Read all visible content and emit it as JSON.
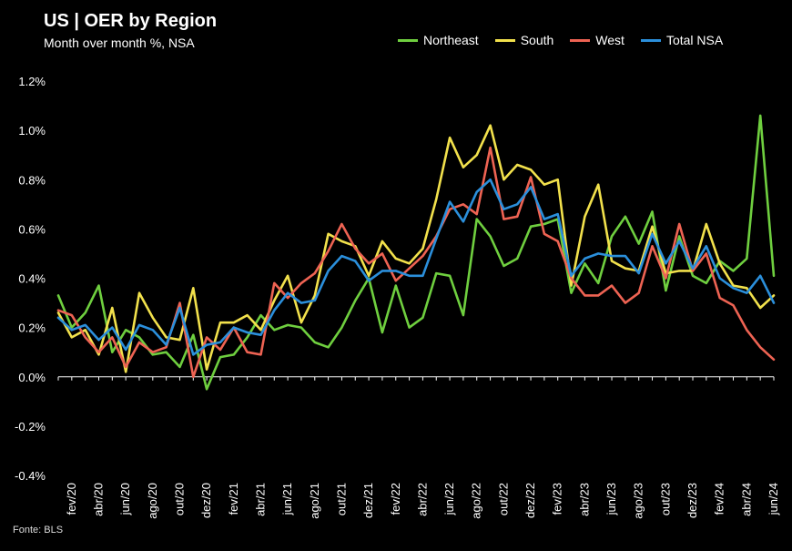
{
  "header": {
    "title": "US | OER by Region",
    "subtitle": "Month over month %, NSA"
  },
  "footer": {
    "source": "Fonte: BLS"
  },
  "chart_data": {
    "type": "line",
    "title": "US | OER by Region",
    "subtitle": "Month over month %, NSA",
    "xlabel": "",
    "ylabel": "",
    "ylim": [
      -0.4,
      1.2
    ],
    "yticks": [
      -0.4,
      -0.2,
      0.0,
      0.2,
      0.4,
      0.6,
      0.8,
      1.0,
      1.2
    ],
    "ytick_labels": [
      "-0.4%",
      "-0.2%",
      "0.0%",
      "0.2%",
      "0.4%",
      "0.6%",
      "0.8%",
      "1.0%",
      "1.2%"
    ],
    "xtick_labels": [
      "fev/20",
      "abr/20",
      "jun/20",
      "ago/20",
      "out/20",
      "dez/20",
      "fev/21",
      "abr/21",
      "jun/21",
      "ago/21",
      "out/21",
      "dez/21",
      "fev/22",
      "abr/22",
      "jun/22",
      "ago/22",
      "out/22",
      "dez/22",
      "fev/23",
      "abr/23",
      "jun/23",
      "ago/23",
      "out/23",
      "dez/23",
      "fev/24",
      "abr/24",
      "jun/24"
    ],
    "legend_position": "top-right",
    "x": [
      "jan/20",
      "fev/20",
      "mar/20",
      "abr/20",
      "mai/20",
      "jun/20",
      "jul/20",
      "ago/20",
      "set/20",
      "out/20",
      "nov/20",
      "dez/20",
      "jan/21",
      "fev/21",
      "mar/21",
      "abr/21",
      "mai/21",
      "jun/21",
      "jul/21",
      "ago/21",
      "set/21",
      "out/21",
      "nov/21",
      "dez/21",
      "jan/22",
      "fev/22",
      "mar/22",
      "abr/22",
      "mai/22",
      "jun/22",
      "jul/22",
      "ago/22",
      "set/22",
      "out/22",
      "nov/22",
      "dez/22",
      "jan/23",
      "fev/23",
      "mar/23",
      "abr/23",
      "mai/23",
      "jun/23",
      "jul/23",
      "ago/23",
      "set/23",
      "out/23",
      "nov/23",
      "dez/23",
      "jan/24",
      "fev/24",
      "mar/24",
      "abr/24",
      "mai/24",
      "jun/24"
    ],
    "series": [
      {
        "name": "Northeast",
        "color": "#6fcf3f",
        "values": [
          0.33,
          0.2,
          0.26,
          0.37,
          0.1,
          0.19,
          0.16,
          0.09,
          0.1,
          0.04,
          0.17,
          -0.05,
          0.08,
          0.09,
          0.16,
          0.25,
          0.19,
          0.21,
          0.2,
          0.14,
          0.12,
          0.2,
          0.31,
          0.4,
          0.18,
          0.37,
          0.2,
          0.24,
          0.42,
          0.41,
          0.25,
          0.64,
          0.57,
          0.45,
          0.48,
          0.61,
          0.62,
          0.64,
          0.34,
          0.46,
          0.38,
          0.57,
          0.65,
          0.54,
          0.67,
          0.35,
          0.57,
          0.41,
          0.38,
          0.47,
          0.43,
          0.48,
          1.06,
          0.41
        ]
      },
      {
        "name": "South",
        "color": "#f2e14c",
        "values": [
          0.26,
          0.16,
          0.19,
          0.09,
          0.28,
          0.02,
          0.34,
          0.24,
          0.16,
          0.15,
          0.36,
          0.03,
          0.22,
          0.22,
          0.25,
          0.19,
          0.31,
          0.41,
          0.22,
          0.33,
          0.58,
          0.55,
          0.53,
          0.41,
          0.55,
          0.48,
          0.46,
          0.52,
          0.72,
          0.97,
          0.85,
          0.9,
          1.02,
          0.8,
          0.86,
          0.84,
          0.78,
          0.8,
          0.37,
          0.65,
          0.78,
          0.47,
          0.44,
          0.43,
          0.61,
          0.42,
          0.43,
          0.43,
          0.62,
          0.46,
          0.37,
          0.36,
          0.28,
          0.33
        ]
      },
      {
        "name": "West",
        "color": "#ee6353",
        "values": [
          0.27,
          0.25,
          0.16,
          0.1,
          0.16,
          0.04,
          0.14,
          0.1,
          0.12,
          0.3,
          0.0,
          0.16,
          0.11,
          0.2,
          0.1,
          0.09,
          0.38,
          0.32,
          0.38,
          0.42,
          0.51,
          0.62,
          0.52,
          0.46,
          0.5,
          0.39,
          0.44,
          0.49,
          0.57,
          0.68,
          0.7,
          0.66,
          0.93,
          0.64,
          0.65,
          0.81,
          0.58,
          0.55,
          0.4,
          0.33,
          0.33,
          0.37,
          0.3,
          0.34,
          0.53,
          0.4,
          0.62,
          0.43,
          0.5,
          0.32,
          0.29,
          0.19,
          0.12,
          0.07
        ]
      },
      {
        "name": "Total NSA",
        "color": "#2b8fdb",
        "values": [
          0.24,
          0.19,
          0.21,
          0.15,
          0.2,
          0.11,
          0.21,
          0.19,
          0.13,
          0.28,
          0.09,
          0.13,
          0.14,
          0.2,
          0.18,
          0.17,
          0.27,
          0.34,
          0.3,
          0.31,
          0.43,
          0.49,
          0.47,
          0.39,
          0.43,
          0.43,
          0.41,
          0.41,
          0.56,
          0.71,
          0.63,
          0.75,
          0.8,
          0.68,
          0.7,
          0.77,
          0.64,
          0.66,
          0.41,
          0.48,
          0.5,
          0.49,
          0.49,
          0.42,
          0.58,
          0.46,
          0.55,
          0.44,
          0.53,
          0.4,
          0.36,
          0.34,
          0.41,
          0.3
        ]
      }
    ]
  }
}
